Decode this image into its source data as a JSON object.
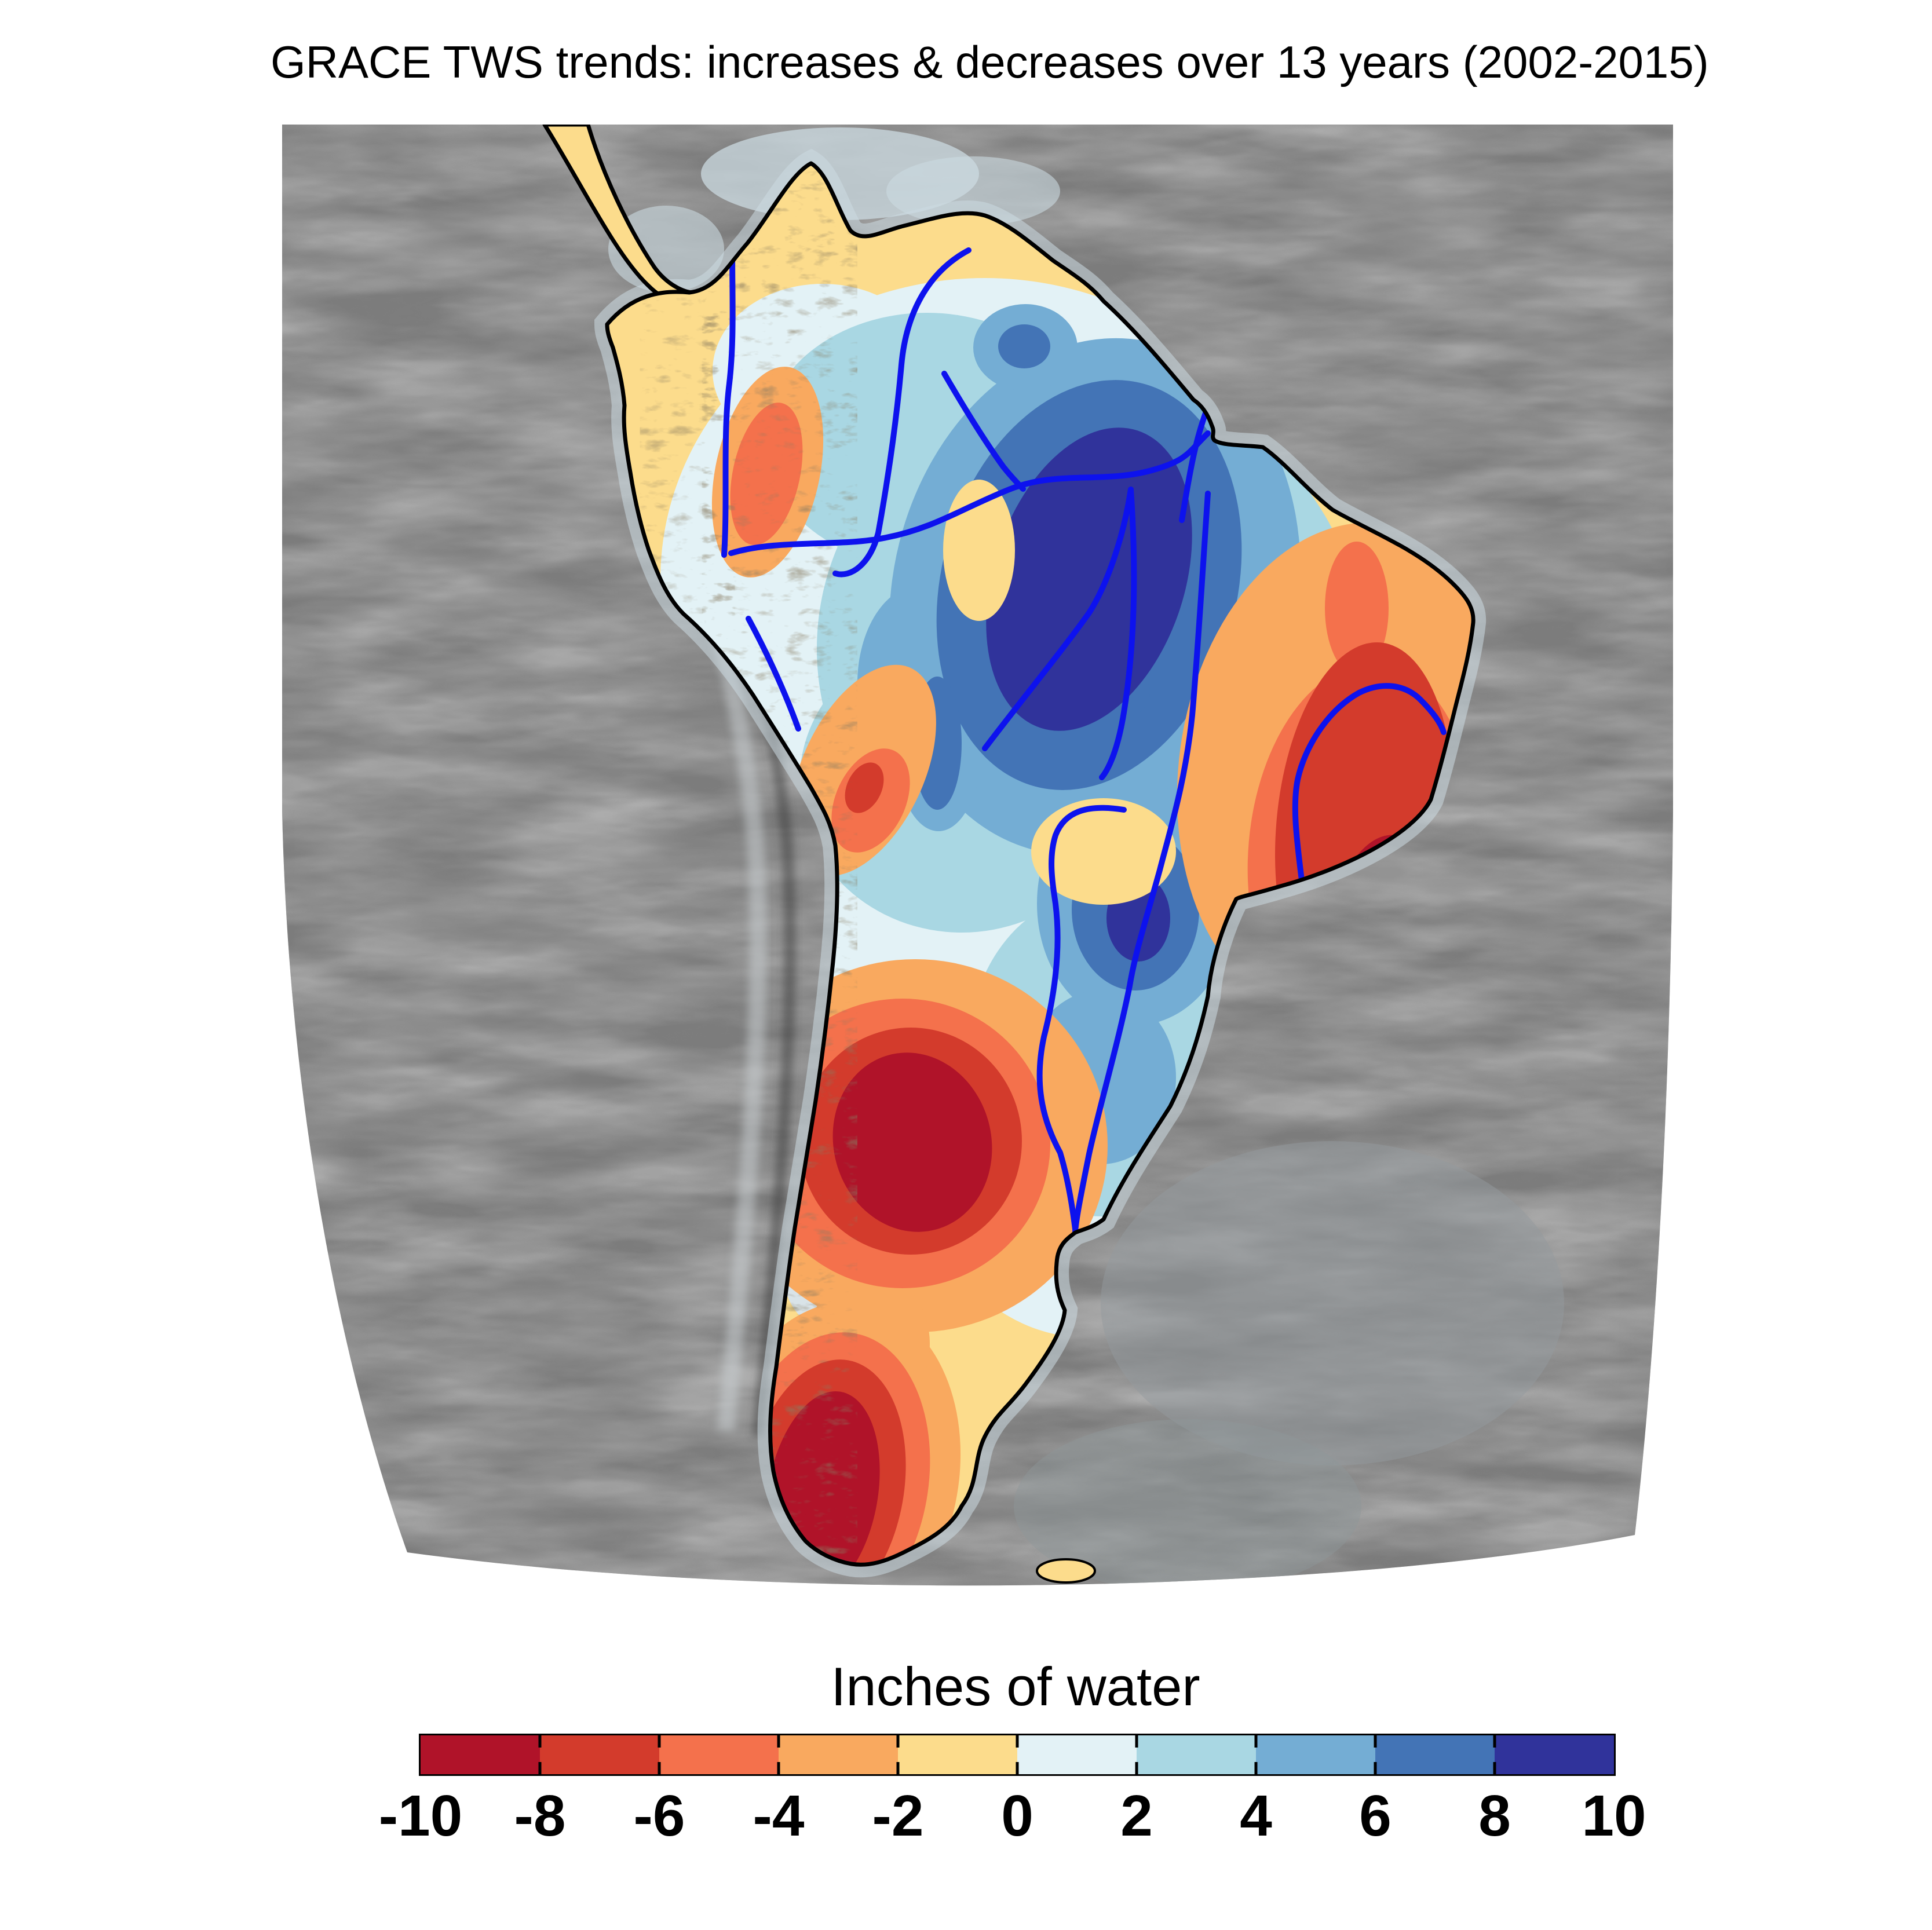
{
  "title": {
    "text": "GRACE TWS trends: increases & decreases over 13 years (2002-2015)"
  },
  "map": {
    "region_name": "South America",
    "ocean_color": "#7d7d7d",
    "land_base_color": "#fcdc8c",
    "coastline_color": "#000000",
    "river_color": "#0d12ee",
    "shelf_color": "#ccdbe1"
  },
  "colorbar": {
    "label": "Inches of water",
    "tick_labels": [
      "-10",
      "-8",
      "-6",
      "-4",
      "-2",
      "0",
      "2",
      "4",
      "6",
      "8",
      "10"
    ],
    "tick_values": [
      -10,
      -8,
      -6,
      -4,
      -2,
      0,
      2,
      4,
      6,
      8,
      10
    ],
    "min": -10,
    "max": 10,
    "segment_colors": [
      "#b01329",
      "#d33b2c",
      "#f4714c",
      "#f9a95f",
      "#fcdc8c",
      "#e3f2f6",
      "#a9d7e3",
      "#74add4",
      "#4374b6",
      "#30339b"
    ]
  },
  "chart_data": {
    "type": "heatmap",
    "title": "GRACE TWS trends: increases & decreases over 13 years (2002-2015)",
    "colorbar_label": "Inches of water",
    "colorbar_ticks": [
      -10,
      -8,
      -6,
      -4,
      -2,
      0,
      2,
      4,
      6,
      8,
      10
    ],
    "colorbar_colors": [
      "#b01329",
      "#d33b2c",
      "#f4714c",
      "#f9a95f",
      "#fcdc8c",
      "#e3f2f6",
      "#a9d7e3",
      "#74add4",
      "#4374b6",
      "#30339b"
    ],
    "legend_position": "bottom"
  }
}
